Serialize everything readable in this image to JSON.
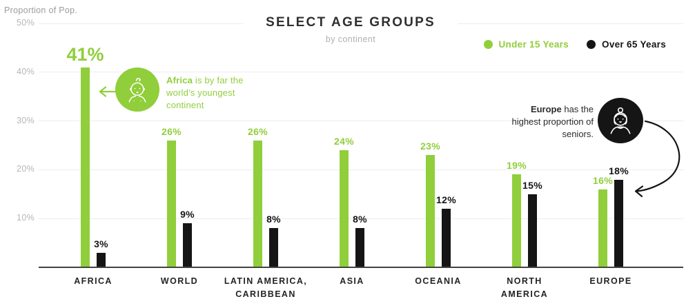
{
  "chart_data": {
    "type": "bar",
    "title": "SELECT AGE GROUPS",
    "subtitle": "by continent",
    "ylabel": "Proportion of Pop.",
    "categories": [
      "AFRICA",
      "WORLD",
      "LATIN AMERICA,\nCARIBBEAN",
      "ASIA",
      "OCEANIA",
      "NORTH\nAMERICA",
      "EUROPE"
    ],
    "series": [
      {
        "name": "Under 15 Years",
        "color": "#90CE3B",
        "values": [
          41,
          26,
          26,
          24,
          23,
          19,
          16
        ]
      },
      {
        "name": "Over 65 Years",
        "color": "#151515",
        "values": [
          3,
          9,
          8,
          8,
          12,
          15,
          18
        ]
      }
    ],
    "value_suffix": "%",
    "ylim": [
      0,
      50
    ],
    "yticks": [
      "10%",
      "20%",
      "30%",
      "40%",
      "50%"
    ],
    "grid": true,
    "legend_position": "top-right",
    "annotations": [
      {
        "id": "africa",
        "bold": "Africa",
        "text": " is by far the world's youngest continent",
        "icon": "baby-icon",
        "color": "#90CE3B"
      },
      {
        "id": "europe",
        "bold": "Europe",
        "text": " has the highest proportion of seniors.",
        "icon": "elderly-woman-icon",
        "color": "#151515"
      }
    ]
  }
}
